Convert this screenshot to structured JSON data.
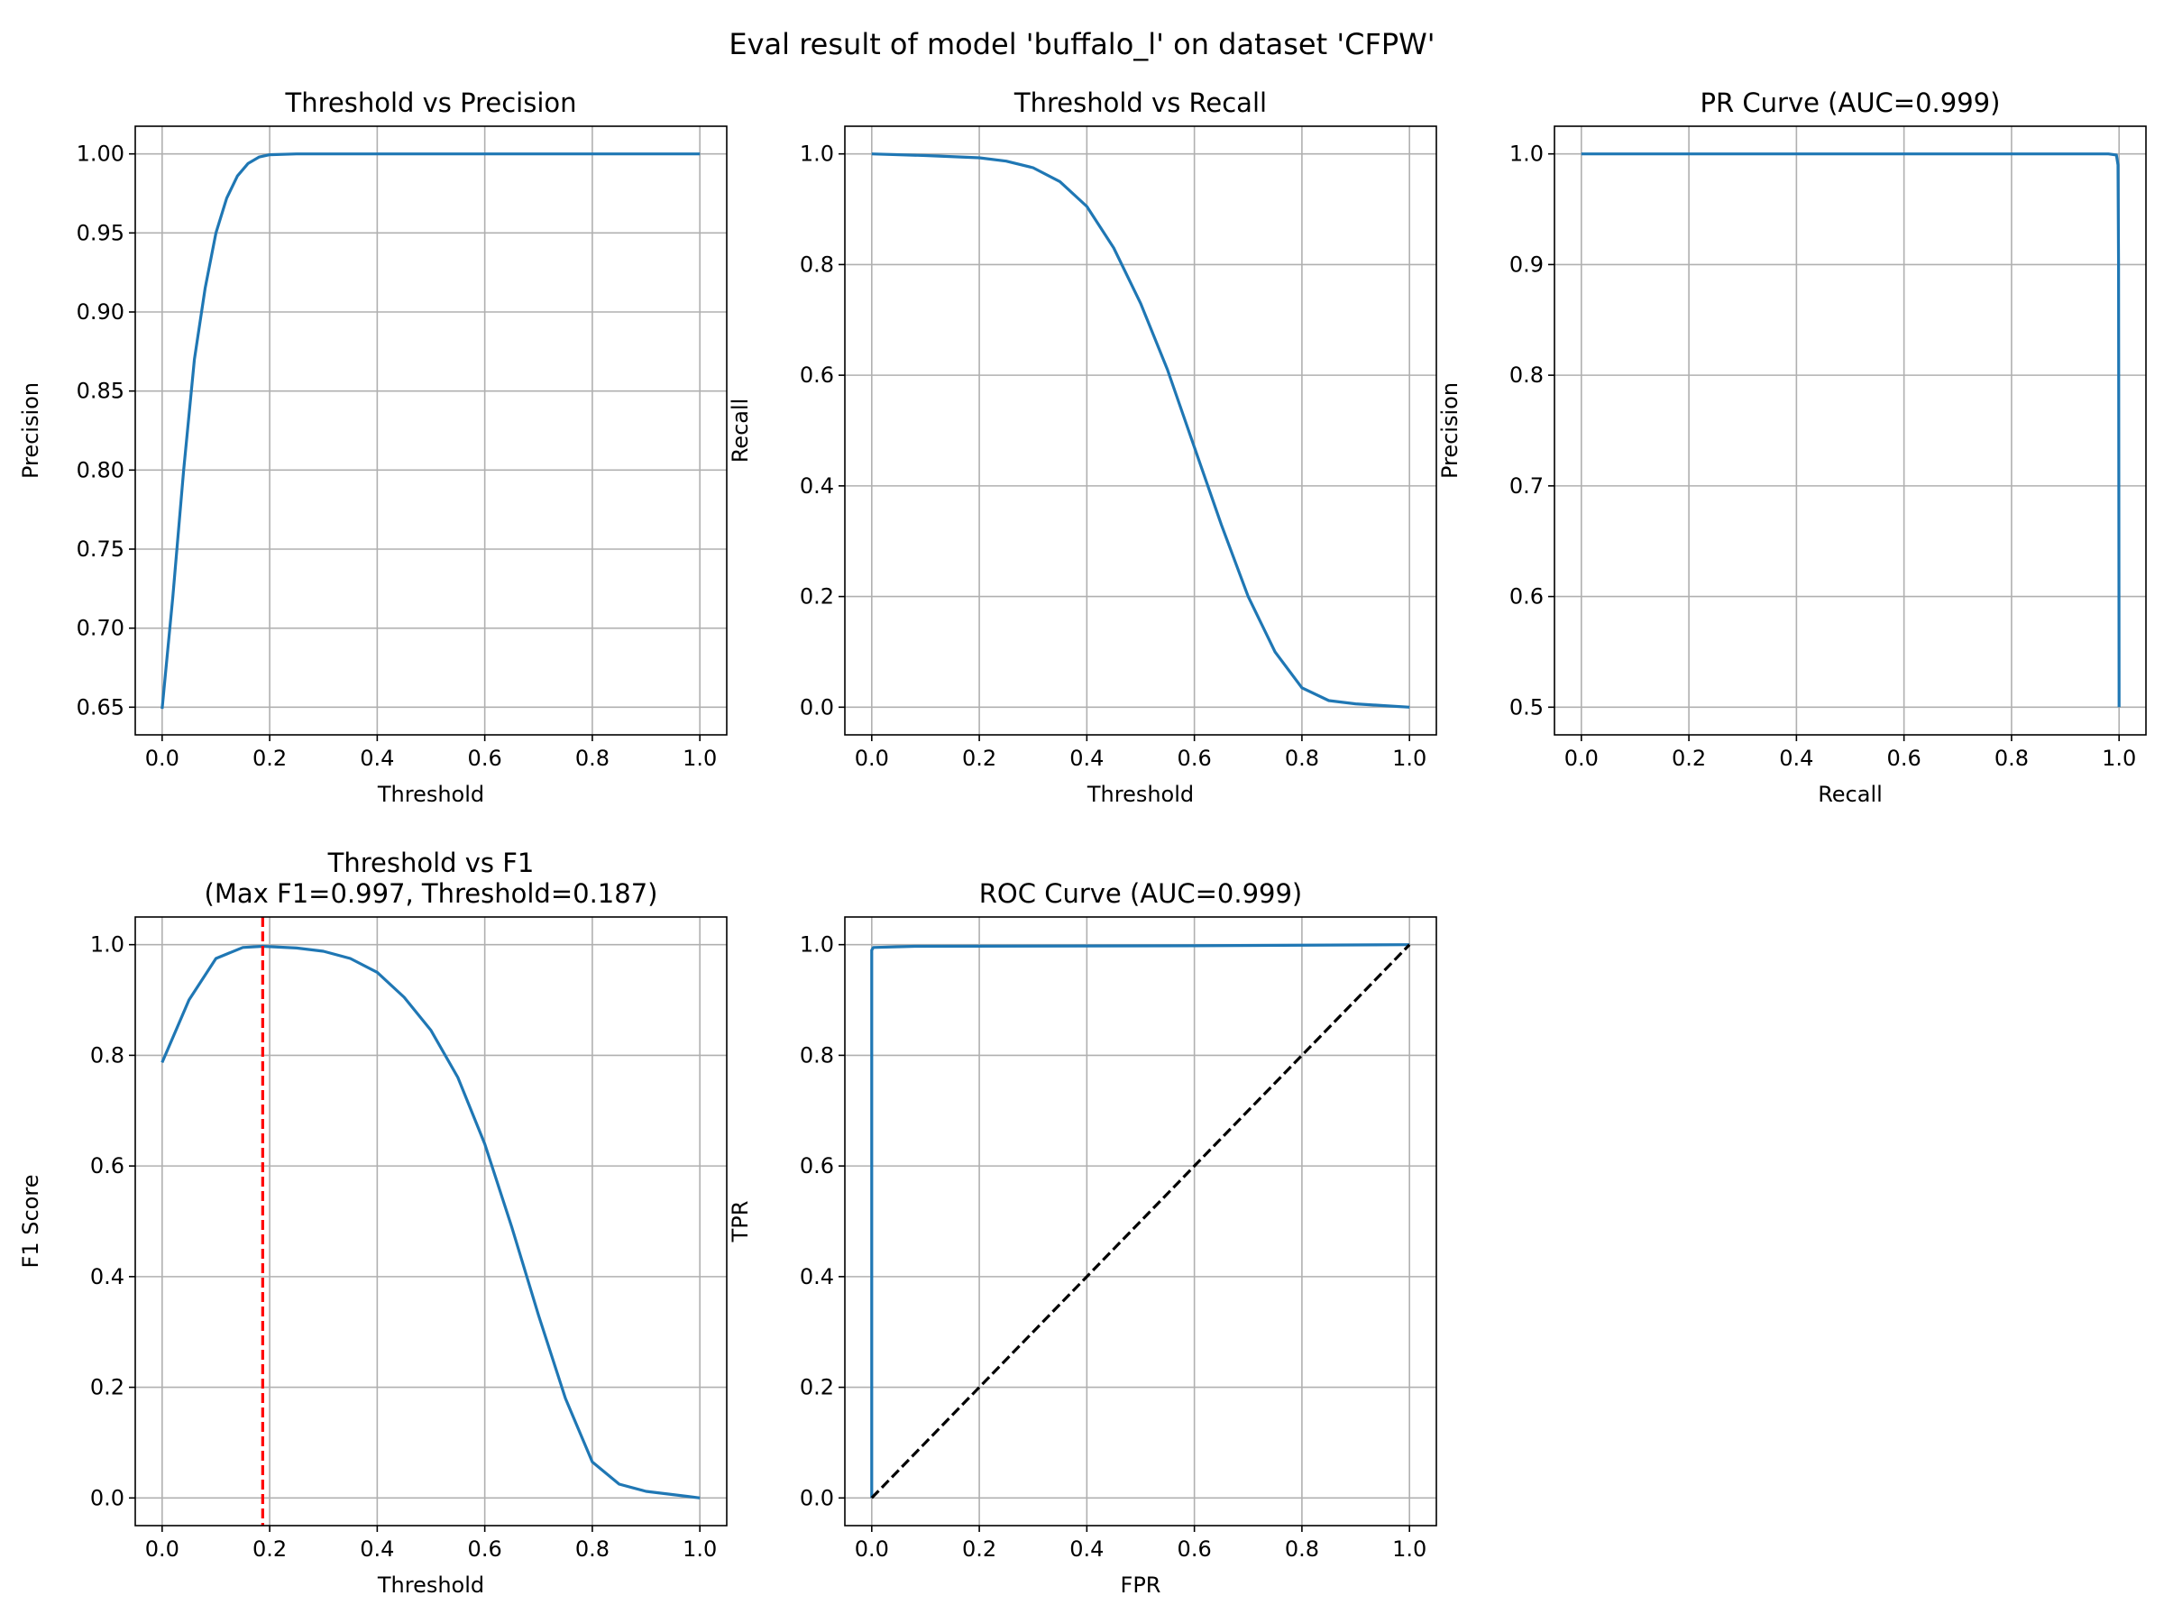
{
  "suptitle": "Eval result of model 'buffalo_l' on dataset 'CFPW'",
  "colors": {
    "series": "#1f77b4",
    "marker_line": "#ff0000",
    "diagonal": "#000000",
    "grid": "#b0b0b0"
  },
  "chart_data": [
    {
      "type": "line",
      "title": "Threshold vs Precision",
      "xlabel": "Threshold",
      "ylabel": "Precision",
      "xlim": [
        -0.05,
        1.05
      ],
      "ylim": [
        0.6325,
        1.0175
      ],
      "xticks": [
        0.0,
        0.2,
        0.4,
        0.6,
        0.8,
        1.0
      ],
      "xtick_labels": [
        "0.0",
        "0.2",
        "0.4",
        "0.6",
        "0.8",
        "1.0"
      ],
      "yticks": [
        0.65,
        0.7,
        0.75,
        0.8,
        0.85,
        0.9,
        0.95,
        1.0
      ],
      "ytick_labels": [
        "0.65",
        "0.70",
        "0.75",
        "0.80",
        "0.85",
        "0.90",
        "0.95",
        "1.00"
      ],
      "grid": true,
      "series": [
        {
          "x": [
            0.0,
            0.02,
            0.04,
            0.06,
            0.08,
            0.1,
            0.12,
            0.14,
            0.16,
            0.18,
            0.2,
            0.25,
            0.3,
            0.4,
            0.5,
            0.6,
            0.7,
            0.8,
            0.9,
            1.0
          ],
          "y": [
            0.649,
            0.72,
            0.8,
            0.87,
            0.915,
            0.95,
            0.972,
            0.986,
            0.994,
            0.998,
            0.9995,
            1.0,
            1.0,
            1.0,
            1.0,
            1.0,
            1.0,
            1.0,
            1.0,
            1.0
          ],
          "color": "#1f77b4"
        }
      ]
    },
    {
      "type": "line",
      "title": "Threshold vs Recall",
      "xlabel": "Threshold",
      "ylabel": "Recall",
      "xlim": [
        -0.05,
        1.05
      ],
      "ylim": [
        -0.05,
        1.05
      ],
      "xticks": [
        0.0,
        0.2,
        0.4,
        0.6,
        0.8,
        1.0
      ],
      "xtick_labels": [
        "0.0",
        "0.2",
        "0.4",
        "0.6",
        "0.8",
        "1.0"
      ],
      "yticks": [
        0.0,
        0.2,
        0.4,
        0.6,
        0.8,
        1.0
      ],
      "ytick_labels": [
        "0.0",
        "0.2",
        "0.4",
        "0.6",
        "0.8",
        "1.0"
      ],
      "grid": true,
      "series": [
        {
          "x": [
            0.0,
            0.1,
            0.2,
            0.25,
            0.3,
            0.35,
            0.4,
            0.45,
            0.5,
            0.55,
            0.6,
            0.65,
            0.7,
            0.75,
            0.8,
            0.85,
            0.9,
            0.95,
            1.0
          ],
          "y": [
            1.0,
            0.997,
            0.993,
            0.987,
            0.975,
            0.95,
            0.905,
            0.83,
            0.73,
            0.61,
            0.47,
            0.33,
            0.2,
            0.1,
            0.035,
            0.012,
            0.006,
            0.003,
            0.0
          ],
          "color": "#1f77b4"
        }
      ]
    },
    {
      "type": "line",
      "title": "PR Curve (AUC=0.999)",
      "xlabel": "Recall",
      "ylabel": "Precision",
      "xlim": [
        -0.05,
        1.05
      ],
      "ylim": [
        0.475,
        1.025
      ],
      "xticks": [
        0.0,
        0.2,
        0.4,
        0.6,
        0.8,
        1.0
      ],
      "xtick_labels": [
        "0.0",
        "0.2",
        "0.4",
        "0.6",
        "0.8",
        "1.0"
      ],
      "yticks": [
        0.5,
        0.6,
        0.7,
        0.8,
        0.9,
        1.0
      ],
      "ytick_labels": [
        "0.5",
        "0.6",
        "0.7",
        "0.8",
        "0.9",
        "1.0"
      ],
      "grid": true,
      "series": [
        {
          "x": [
            0.0,
            0.5,
            0.98,
            0.995,
            0.998,
            0.999,
            1.0
          ],
          "y": [
            1.0,
            1.0,
            1.0,
            0.999,
            0.99,
            0.9,
            0.5
          ],
          "color": "#1f77b4"
        }
      ]
    },
    {
      "type": "line",
      "title": "Threshold vs F1",
      "subtitle": "(Max F1=0.997, Threshold=0.187)",
      "xlabel": "Threshold",
      "ylabel": "F1 Score",
      "xlim": [
        -0.05,
        1.05
      ],
      "ylim": [
        -0.05,
        1.05
      ],
      "xticks": [
        0.0,
        0.2,
        0.4,
        0.6,
        0.8,
        1.0
      ],
      "xtick_labels": [
        "0.0",
        "0.2",
        "0.4",
        "0.6",
        "0.8",
        "1.0"
      ],
      "yticks": [
        0.0,
        0.2,
        0.4,
        0.6,
        0.8,
        1.0
      ],
      "ytick_labels": [
        "0.0",
        "0.2",
        "0.4",
        "0.6",
        "0.8",
        "1.0"
      ],
      "grid": true,
      "series": [
        {
          "x": [
            0.0,
            0.05,
            0.1,
            0.15,
            0.187,
            0.25,
            0.3,
            0.35,
            0.4,
            0.45,
            0.5,
            0.55,
            0.6,
            0.65,
            0.7,
            0.75,
            0.8,
            0.85,
            0.9,
            0.95,
            1.0
          ],
          "y": [
            0.787,
            0.9,
            0.975,
            0.995,
            0.997,
            0.994,
            0.988,
            0.975,
            0.95,
            0.905,
            0.845,
            0.76,
            0.64,
            0.49,
            0.33,
            0.18,
            0.065,
            0.025,
            0.012,
            0.006,
            0.0
          ],
          "color": "#1f77b4"
        }
      ],
      "vlines": [
        {
          "x": 0.187,
          "color": "#ff0000",
          "style": "dashed"
        }
      ]
    },
    {
      "type": "line",
      "title": "ROC Curve (AUC=0.999)",
      "xlabel": "FPR",
      "ylabel": "TPR",
      "xlim": [
        -0.05,
        1.05
      ],
      "ylim": [
        -0.05,
        1.05
      ],
      "xticks": [
        0.0,
        0.2,
        0.4,
        0.6,
        0.8,
        1.0
      ],
      "xtick_labels": [
        "0.0",
        "0.2",
        "0.4",
        "0.6",
        "0.8",
        "1.0"
      ],
      "yticks": [
        0.0,
        0.2,
        0.4,
        0.6,
        0.8,
        1.0
      ],
      "ytick_labels": [
        "0.0",
        "0.2",
        "0.4",
        "0.6",
        "0.8",
        "1.0"
      ],
      "grid": true,
      "series": [
        {
          "x": [
            0.0,
            0.0,
            0.003,
            0.08,
            0.6,
            1.0
          ],
          "y": [
            0.0,
            0.99,
            0.995,
            0.997,
            0.998,
            1.0
          ],
          "color": "#1f77b4"
        },
        {
          "x": [
            0.0,
            1.0
          ],
          "y": [
            0.0,
            1.0
          ],
          "color": "#000000",
          "style": "dashed"
        }
      ]
    }
  ]
}
